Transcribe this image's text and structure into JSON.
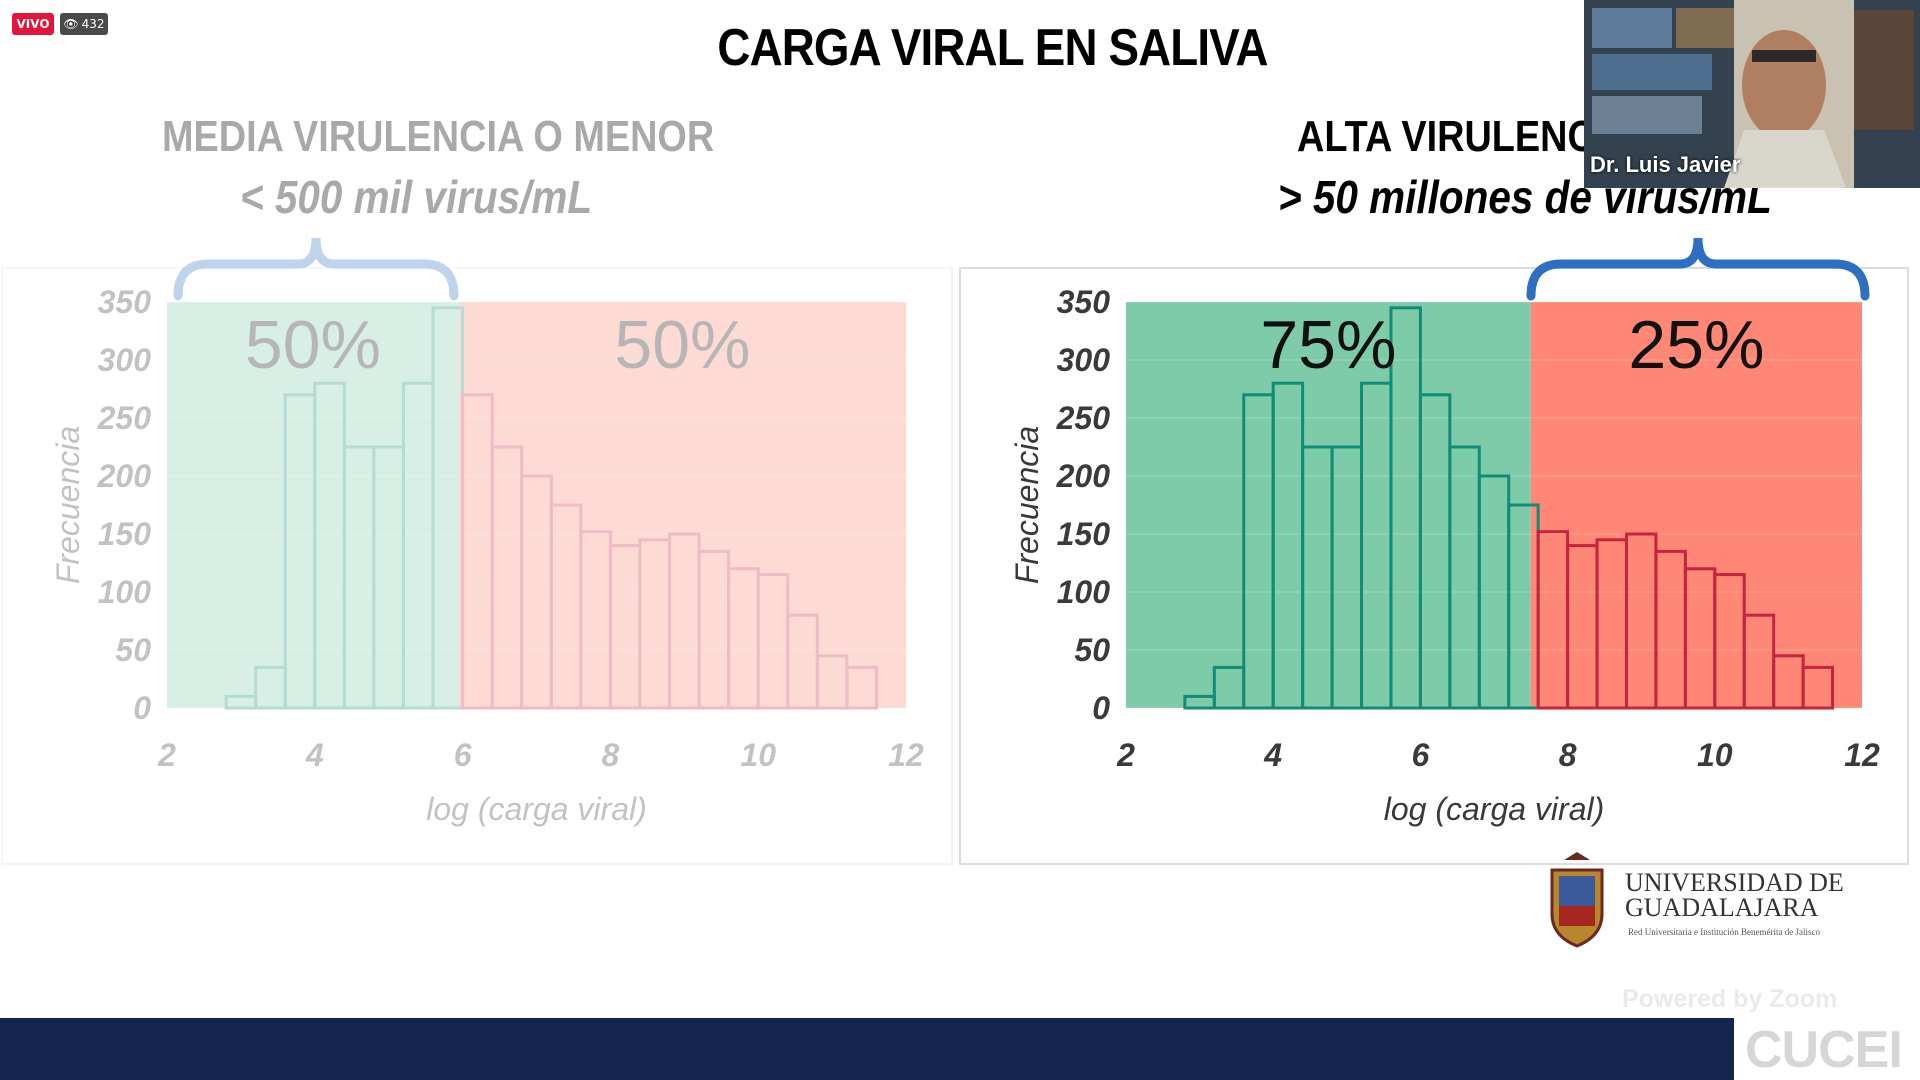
{
  "stream": {
    "live_label": "VIVO",
    "viewer_count": "432"
  },
  "slide": {
    "title": "CARGA VIRAL EN SALIVA",
    "left": {
      "header": "MEDIA VIRULENCIA O MENOR",
      "subheader": "< 500 mil virus/mL"
    },
    "right": {
      "header": "ALTA VIRULENCIA",
      "subheader": "> 50 millones de virus/mL"
    }
  },
  "video": {
    "speaker_name": "Dr. Luis Javier"
  },
  "branding": {
    "university_line1": "UNIVERSIDAD DE",
    "university_line2": "GUADALAJARA",
    "tagline": "Red Universitaria e Institución Benemérita de Jalisco",
    "powered_by": "Powered by Zoom",
    "campus": "CUCEI"
  },
  "colors": {
    "green": "#7ecba9",
    "red": "#fe8775",
    "bar_stroke_green": "#128c76",
    "bar_stroke_red": "#c5243e",
    "footer": "#14254f"
  },
  "chart_data": [
    {
      "type": "bar",
      "xlabel": "log (carga viral)",
      "ylabel": "Frecuencia",
      "xlim": [
        2,
        12
      ],
      "ylim": [
        0,
        350
      ],
      "x_ticks": [
        2,
        4,
        6,
        8,
        10,
        12
      ],
      "y_ticks": [
        0,
        50,
        100,
        150,
        200,
        250,
        300,
        350
      ],
      "bin_width": 0.4,
      "x_bin_start": [
        2.8,
        3.2,
        3.6,
        4.0,
        4.4,
        4.8,
        5.2,
        5.6,
        6.0,
        6.4,
        6.8,
        7.2,
        7.6,
        8.0,
        8.4,
        8.8,
        9.2,
        9.6,
        10.0,
        10.4,
        10.8,
        11.2
      ],
      "values": [
        10,
        35,
        270,
        280,
        225,
        225,
        280,
        345,
        270,
        225,
        200,
        175,
        152,
        140,
        145,
        150,
        135,
        120,
        115,
        80,
        45,
        35
      ],
      "regions": [
        {
          "from": 2.0,
          "to": 5.95,
          "label": "50%",
          "color": "green"
        },
        {
          "from": 5.95,
          "to": 12.0,
          "label": "50%",
          "color": "red"
        }
      ],
      "faded": true
    },
    {
      "type": "bar",
      "xlabel": "log (carga viral)",
      "ylabel": "Frecuencia",
      "xlim": [
        2,
        12
      ],
      "ylim": [
        0,
        350
      ],
      "x_ticks": [
        2,
        4,
        6,
        8,
        10,
        12
      ],
      "y_ticks": [
        0,
        50,
        100,
        150,
        200,
        250,
        300,
        350
      ],
      "bin_width": 0.4,
      "x_bin_start": [
        2.8,
        3.2,
        3.6,
        4.0,
        4.4,
        4.8,
        5.2,
        5.6,
        6.0,
        6.4,
        6.8,
        7.2,
        7.6,
        8.0,
        8.4,
        8.8,
        9.2,
        9.6,
        10.0,
        10.4,
        10.8,
        11.2
      ],
      "values": [
        10,
        35,
        270,
        280,
        225,
        225,
        280,
        345,
        270,
        225,
        200,
        175,
        152,
        140,
        145,
        150,
        135,
        120,
        115,
        80,
        45,
        35
      ],
      "regions": [
        {
          "from": 2.0,
          "to": 7.5,
          "label": "75%",
          "color": "green"
        },
        {
          "from": 7.5,
          "to": 12.0,
          "label": "25%",
          "color": "red"
        }
      ],
      "faded": false
    }
  ]
}
